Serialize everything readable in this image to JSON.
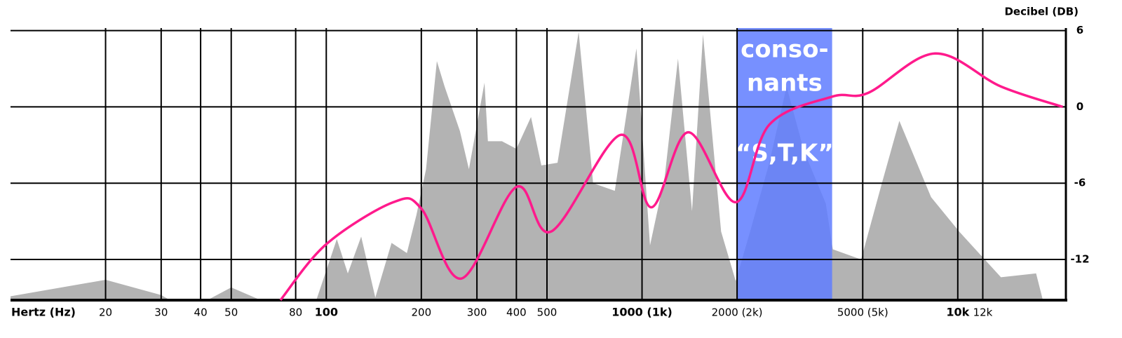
{
  "chart_data": {
    "type": "line",
    "x_label": "Hertz (Hz)",
    "y_label": "Decibel (DB)",
    "xscale": "log",
    "xlim": [
      10,
      22000
    ],
    "ylim": [
      -15.2,
      6.2
    ],
    "grid": true,
    "xticks": [
      20,
      30,
      40,
      50,
      80,
      {
        "value": 100,
        "label": "100",
        "bold": true
      },
      200,
      300,
      400,
      500,
      {
        "value": 1000,
        "label": "1000 (1k)",
        "bold": true
      },
      {
        "value": 2000,
        "label": "2000 (2k)"
      },
      {
        "value": 5000,
        "label": "5000 (5k)"
      },
      {
        "value": 10000,
        "label": "10k",
        "bold": true
      },
      {
        "value": 12000,
        "label": "12k"
      }
    ],
    "yticks": [
      6,
      0,
      -6,
      -12
    ],
    "spectrum": {
      "color": "#b3b3b3",
      "x": [
        10,
        20,
        30,
        32,
        42,
        50,
        62,
        93,
        108,
        117,
        129,
        143,
        161,
        180,
        193,
        207,
        224,
        237,
        265,
        283,
        317,
        325,
        360,
        400,
        445,
        480,
        540,
        630,
        700,
        820,
        960,
        1060,
        1180,
        1300,
        1440,
        1560,
        1780,
        1980,
        2200,
        2530,
        2870,
        3260,
        3820,
        4020,
        4940,
        5750,
        6530,
        8230,
        10100,
        13700,
        17700,
        18600
      ],
      "values": [
        -14.9,
        -13.6,
        -14.8,
        -15.2,
        -15.2,
        -14.2,
        -15.2,
        -15.2,
        -10.4,
        -13.1,
        -10.2,
        -15,
        -10.7,
        -11.5,
        -8.5,
        -4.9,
        3.6,
        1.6,
        -1.9,
        -4.9,
        1.9,
        -2.7,
        -2.7,
        -3.3,
        -0.8,
        -4.6,
        -4.4,
        5.9,
        -6.0,
        -6.6,
        4.6,
        -10.9,
        -5.5,
        3.8,
        -8.2,
        5.7,
        -9.8,
        -13.7,
        -9.8,
        -4.4,
        1.6,
        -3.5,
        -7.6,
        -11.2,
        -12.0,
        -6.0,
        -1.1,
        -7.1,
        -9.8,
        -13.4,
        -13.1,
        -15.2
      ]
    },
    "series": [
      {
        "color": "#ff1a8c",
        "x": [
          71.6,
          100,
          163,
          200,
          268,
          400,
          516,
          855,
          1070,
          1400,
          1980,
          2530,
          3990,
          5200,
          8460,
          13700,
          21500
        ],
        "values": [
          -15.2,
          -10.8,
          -7.5,
          -8.0,
          -13.5,
          -6.3,
          -9.8,
          -2.2,
          -7.9,
          -2.0,
          -7.5,
          -1.4,
          0.8,
          1.1,
          4.2,
          1.6,
          0
        ]
      }
    ],
    "highlight": {
      "x": [
        2000,
        4000
      ],
      "color": "#5f7dff",
      "lines": [
        "conso-",
        "nants",
        "“S,T,K”"
      ]
    }
  }
}
